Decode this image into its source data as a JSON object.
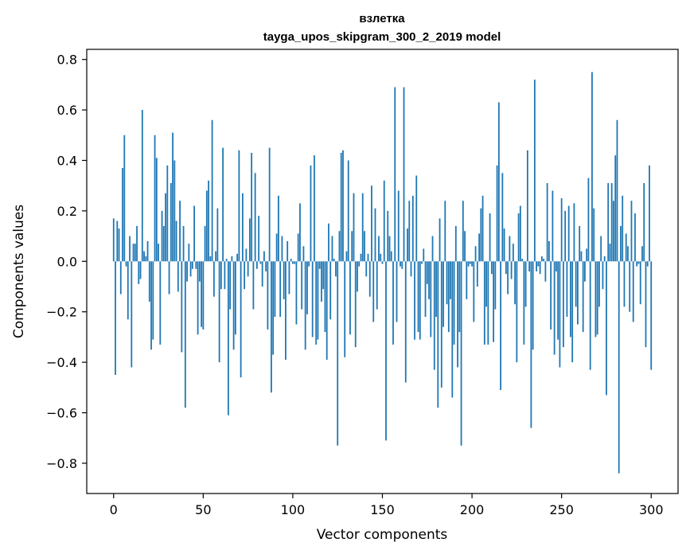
{
  "chart_data": {
    "type": "bar",
    "title": "взлетка",
    "subtitle": "tayga_upos_skipgram_300_2_2019 model",
    "xlabel": "Vector components",
    "ylabel": "Components values",
    "xlim": [
      -15,
      315
    ],
    "ylim": [
      -0.92,
      0.84
    ],
    "xticks": [
      0,
      50,
      100,
      150,
      200,
      250,
      300
    ],
    "yticks": [
      -0.8,
      -0.6,
      -0.4,
      -0.2,
      0.0,
      0.2,
      0.4,
      0.6,
      0.8
    ],
    "xtick_labels": [
      "0",
      "50",
      "100",
      "150",
      "200",
      "250",
      "300"
    ],
    "ytick_labels": [
      "−0.8",
      "−0.6",
      "−0.4",
      "−0.2",
      "0.0",
      "0.2",
      "0.4",
      "0.6",
      "0.8"
    ],
    "grid": false,
    "bar_color": "#1f77b4",
    "values": [
      0.17,
      -0.45,
      0.16,
      0.13,
      -0.13,
      0.37,
      0.5,
      -0.02,
      -0.23,
      0.1,
      -0.42,
      0.07,
      0.07,
      0.14,
      -0.09,
      -0.07,
      0.6,
      0.04,
      0.02,
      0.08,
      -0.16,
      -0.35,
      -0.31,
      0.5,
      0.41,
      0.07,
      -0.33,
      0.2,
      0.14,
      0.27,
      0.38,
      -0.13,
      0.31,
      0.51,
      0.4,
      0.16,
      -0.12,
      0.24,
      -0.36,
      0.14,
      -0.58,
      -0.08,
      0.07,
      -0.06,
      -0.03,
      0.22,
      -0.03,
      -0.29,
      -0.08,
      -0.26,
      -0.27,
      0.14,
      0.28,
      0.32,
      0.02,
      0.56,
      -0.14,
      0.04,
      0.21,
      -0.4,
      -0.11,
      0.45,
      -0.11,
      0.01,
      -0.61,
      -0.19,
      0.02,
      -0.35,
      -0.29,
      0.03,
      0.44,
      -0.46,
      0.27,
      -0.11,
      0.05,
      -0.06,
      0.17,
      0.43,
      -0.19,
      0.35,
      -0.03,
      0.18,
      -0.01,
      -0.1,
      0.04,
      -0.04,
      -0.27,
      0.45,
      -0.52,
      -0.37,
      -0.22,
      0.11,
      0.26,
      -0.22,
      0.1,
      -0.15,
      -0.39,
      0.08,
      -0.13,
      0.01,
      -0.01,
      -0.01,
      -0.25,
      0.11,
      0.23,
      -0.19,
      0.06,
      -0.35,
      -0.21,
      -0.02,
      0.38,
      -0.3,
      0.42,
      -0.33,
      -0.31,
      -0.03,
      -0.16,
      -0.11,
      -0.28,
      -0.39,
      0.15,
      -0.23,
      0.1,
      0.01,
      -0.06,
      -0.73,
      0.12,
      0.43,
      0.44,
      -0.38,
      0.04,
      0.4,
      -0.29,
      0.12,
      0.27,
      -0.34,
      -0.12,
      -0.02,
      0.03,
      0.27,
      0.12,
      -0.06,
      0.03,
      -0.14,
      0.3,
      -0.24,
      0.21,
      -0.19,
      0.1,
      0.03,
      -0.01,
      0.32,
      -0.71,
      0.2,
      0.1,
      0.04,
      -0.33,
      0.69,
      -0.24,
      0.28,
      -0.02,
      -0.03,
      0.69,
      -0.48,
      0.13,
      0.24,
      -0.06,
      0.26,
      -0.31,
      0.34,
      -0.28,
      -0.31,
      -0.01,
      0.05,
      -0.22,
      -0.09,
      -0.15,
      -0.3,
      0.1,
      -0.43,
      -0.22,
      -0.58,
      0.17,
      -0.5,
      -0.26,
      0.24,
      -0.17,
      -0.28,
      -0.15,
      -0.54,
      -0.33,
      0.14,
      -0.42,
      -0.28,
      -0.73,
      0.24,
      0.12,
      -0.15,
      -0.02,
      -0.01,
      -0.02,
      -0.24,
      0.06,
      -0.1,
      0.11,
      0.21,
      0.26,
      -0.33,
      -0.18,
      -0.33,
      0.19,
      -0.05,
      -0.32,
      -0.19,
      0.38,
      0.63,
      -0.51,
      0.35,
      0.13,
      -0.05,
      -0.13,
      0.1,
      -0.07,
      0.07,
      -0.17,
      -0.4,
      0.19,
      0.22,
      0.01,
      -0.33,
      -0.18,
      0.44,
      -0.04,
      -0.66,
      -0.35,
      0.72,
      -0.04,
      -0.02,
      -0.05,
      0.02,
      0.01,
      -0.08,
      0.31,
      0.08,
      -0.27,
      0.28,
      -0.37,
      -0.04,
      -0.31,
      -0.42,
      0.25,
      -0.34,
      0.2,
      -0.22,
      0.22,
      -0.3,
      -0.4,
      0.23,
      -0.18,
      -0.25,
      0.14,
      0.04,
      -0.28,
      -0.08,
      0.05,
      0.33,
      -0.43,
      0.75,
      0.21,
      -0.3,
      -0.29,
      -0.18,
      0.1,
      -0.11,
      0.02,
      -0.53,
      0.31,
      0.07,
      0.31,
      0.24,
      0.42,
      0.56,
      -0.84,
      0.14,
      0.26,
      -0.18,
      0.11,
      0.06,
      -0.2,
      0.24,
      -0.24,
      0.19,
      -0.02,
      -0.01,
      -0.17,
      0.06,
      0.31,
      -0.34,
      -0.02,
      0.38,
      -0.43
    ]
  }
}
